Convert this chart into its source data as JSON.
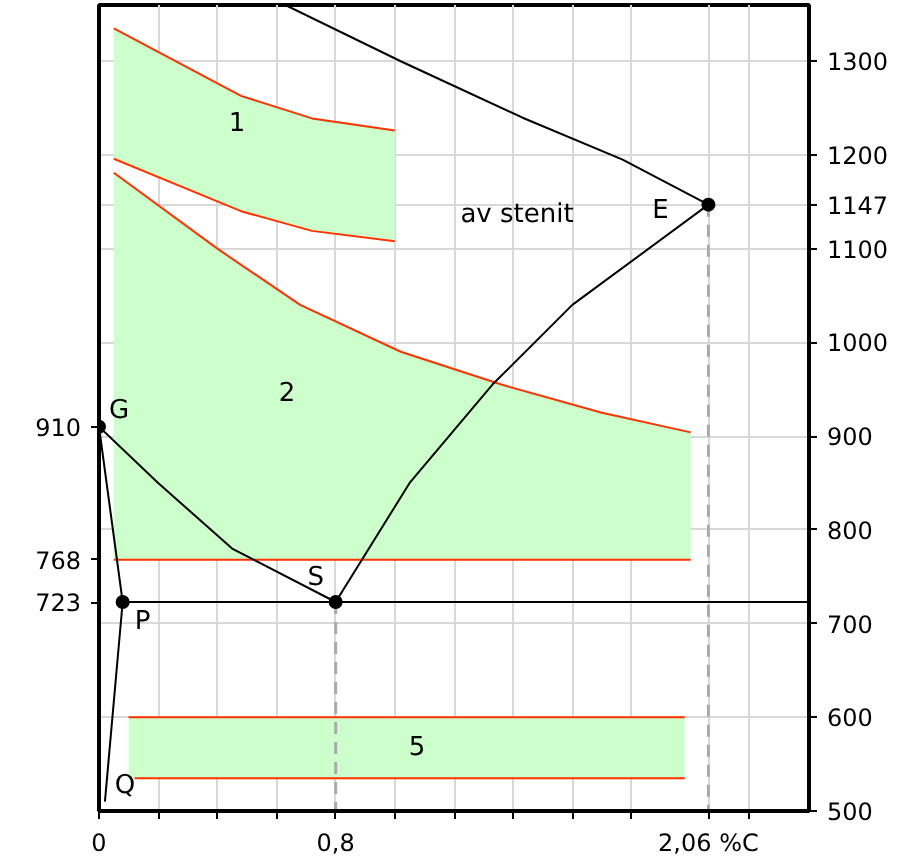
{
  "chart_data": {
    "type": "line",
    "xlim": [
      0,
      2.4
    ],
    "ylim": [
      500,
      1360
    ],
    "y2lim": [
      500,
      1360
    ],
    "xticks": [
      0,
      {
        "value": 0.2,
        "label": null
      },
      {
        "value": 0.4,
        "label": null
      },
      {
        "value": 0.6,
        "label": null
      },
      {
        "value": 0.8,
        "label": "0,8"
      },
      {
        "value": 1.0,
        "label": null
      },
      {
        "value": 1.2,
        "label": null
      },
      {
        "value": 1.4,
        "label": null
      },
      {
        "value": 1.6,
        "label": null
      },
      {
        "value": 1.8,
        "label": null
      },
      {
        "value": 2.06,
        "label": "2,06 %C"
      },
      {
        "value": 2.2,
        "label": null
      }
    ],
    "yticks": [
      723,
      768,
      910
    ],
    "y2ticks": [
      500,
      600,
      700,
      800,
      900,
      1000,
      1100,
      1147,
      1200,
      1300
    ],
    "grid": true,
    "annotations": [
      "1",
      "2",
      "5",
      "av stenit",
      {
        "text": "G",
        "x": 0,
        "y": 910
      },
      {
        "text": "P",
        "x": 0.08,
        "y": 723
      },
      {
        "text": "S",
        "x": 0.8,
        "y": 723
      },
      {
        "text": "E",
        "x": 2.06,
        "y": 1147
      },
      {
        "text": "Q",
        "x": 0.02,
        "y": 510
      }
    ],
    "series": [
      {
        "color": "#ff3300",
        "x": [
          0.05,
          0.48,
          0.72,
          1.0
        ],
        "values": [
          1335,
          1263,
          1239,
          1226
        ],
        "lower": [
          1196,
          1140,
          1119,
          1108
        ],
        "upper": [
          1335,
          1263,
          1239,
          1226
        ]
      },
      {
        "color": "#ff3300",
        "x": [
          0.05,
          0.48,
          0.72,
          1.0
        ],
        "values": [
          1196,
          1140,
          1119,
          1108
        ]
      },
      {
        "color": "#ff3300",
        "x": [
          0.05,
          0.4,
          0.68,
          1.02,
          1.36,
          1.7,
          2.0
        ],
        "values": [
          1181,
          1100,
          1040,
          990,
          955,
          925,
          904
        ],
        "lower": [
          768,
          768,
          768,
          768,
          768,
          768,
          768
        ],
        "upper": [
          1181,
          1100,
          1040,
          990,
          955,
          925,
          904
        ]
      },
      {
        "color": "#ff3300",
        "x": [
          0.05,
          2.0
        ],
        "values": [
          768,
          768
        ]
      },
      {
        "color": "#ff3300",
        "x": [
          0.1,
          1.98
        ],
        "values": [
          600,
          600
        ],
        "lower": [
          535,
          535
        ],
        "upper": [
          600,
          600
        ]
      },
      {
        "color": "#ff3300",
        "x": [
          0.12,
          1.98
        ],
        "values": [
          535,
          535
        ]
      },
      {
        "color": "#aaaaaa",
        "line_style": "dashed",
        "x": [
          0.8,
          0.8
        ],
        "values": [
          723,
          500
        ]
      },
      {
        "color": "#aaaaaa",
        "line_style": "dashed",
        "x": [
          2.06,
          2.06
        ],
        "values": [
          1147,
          500
        ]
      },
      {
        "color": "#000000",
        "x": [
          0.63,
          1.02,
          1.43,
          1.77,
          2.06
        ],
        "values": [
          1360,
          1300,
          1240,
          1195,
          1147
        ]
      },
      {
        "color": "#000000",
        "x": [
          2.06,
          1.6,
          1.33,
          1.05,
          0.8
        ],
        "values": [
          1147,
          1040,
          955,
          850,
          723
        ]
      },
      {
        "color": "#000000",
        "x": [
          0,
          0.2,
          0.45,
          0.8
        ],
        "values": [
          910,
          850,
          780,
          723
        ]
      },
      {
        "color": "#000000",
        "x": [
          0,
          0.08,
          0.02
        ],
        "values": [
          910,
          723,
          510
        ]
      },
      {
        "color": "#000000",
        "x": [
          0.08,
          2.4
        ],
        "values": [
          723,
          723
        ]
      },
      {
        "type": "scatter",
        "color": "#000000",
        "marker": "circle",
        "x": [
          0,
          0.08,
          0.8,
          2.06
        ],
        "values": [
          910,
          723,
          723,
          1147
        ]
      }
    ]
  }
}
